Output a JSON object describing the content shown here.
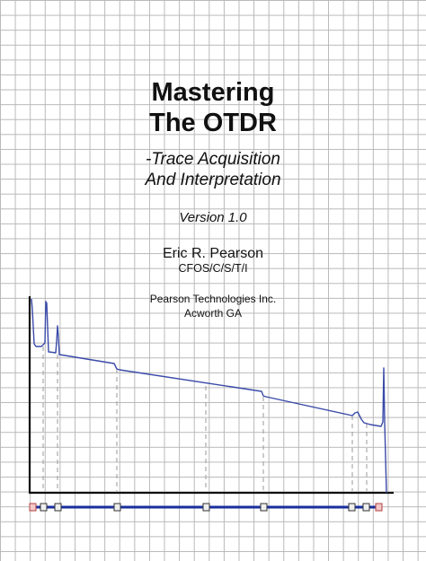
{
  "cover": {
    "title_line1": "Mastering",
    "title_line2": "The OTDR",
    "subtitle_line1": "-Trace Acquisition",
    "subtitle_line2": "And Interpretation",
    "version": "Version 1.0",
    "author": "Eric R. Pearson",
    "credentials": "CFOS/C/S/T/I",
    "company": "Pearson Technologies Inc.",
    "location": "Acworth GA"
  },
  "colors": {
    "trace": "#3a4aa8",
    "link_line": "#1a2e9c",
    "axis": "#111111",
    "event_marker": "#9a9a9a",
    "connector_fill": "#eeeeee",
    "end_connector_fill": "#f3c9c9",
    "grid": "#b8b8b8"
  }
}
